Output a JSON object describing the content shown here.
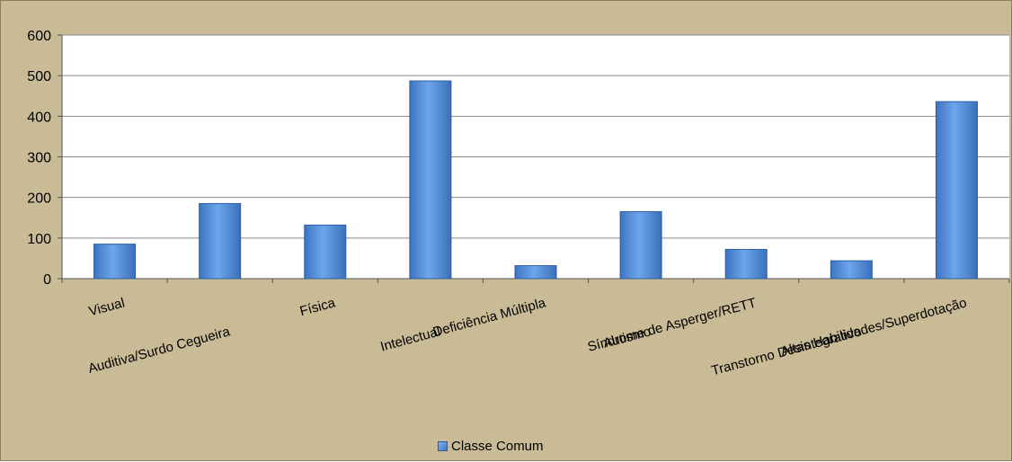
{
  "chart_data": {
    "type": "bar",
    "categories": [
      "Visual",
      "Auditiva/Surdo Cegueira",
      "Física",
      "Intelectual",
      "Deficiência Múltipla",
      "Autismo",
      "Síndrome de Asperger/RETT",
      "Transtorno Desintegrativo",
      "Altas Habilidades/Superdotação"
    ],
    "series": [
      {
        "name": "Classe Comum",
        "values": [
          85,
          185,
          132,
          487,
          32,
          165,
          72,
          44,
          436
        ]
      }
    ],
    "yticks": [
      "0",
      "100",
      "200",
      "300",
      "400",
      "500",
      "600"
    ],
    "ylim": [
      0,
      600
    ],
    "grid": true,
    "legend": "bottom-center",
    "colors": {
      "background": "#c8bb96",
      "plot": "#ffffff",
      "bar": "#4a86d6",
      "bar_edge": "#2d5f9e"
    }
  }
}
